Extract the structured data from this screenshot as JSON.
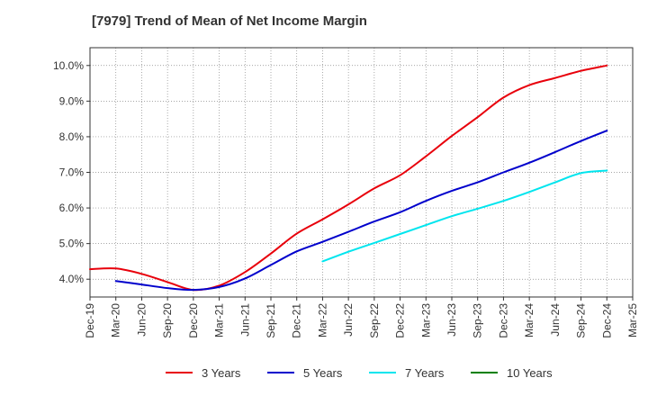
{
  "title": "[7979]  Trend of Mean of Net Income Margin",
  "chart_data": {
    "type": "line",
    "title": "[7979]  Trend of Mean of Net Income Margin",
    "xlabel": "",
    "ylabel": "",
    "x_ticks": [
      "Dec-19",
      "Mar-20",
      "Jun-20",
      "Sep-20",
      "Dec-20",
      "Mar-21",
      "Jun-21",
      "Sep-21",
      "Dec-21",
      "Mar-22",
      "Jun-22",
      "Sep-22",
      "Dec-22",
      "Mar-23",
      "Jun-23",
      "Sep-23",
      "Dec-23",
      "Mar-24",
      "Jun-24",
      "Sep-24",
      "Dec-24",
      "Mar-25"
    ],
    "y_ticks": [
      "4.0%",
      "5.0%",
      "6.0%",
      "7.0%",
      "8.0%",
      "9.0%",
      "10.0%"
    ],
    "ylim": [
      3.5,
      10.5
    ],
    "grid": true,
    "legend_position": "bottom",
    "series": [
      {
        "name": "3 Years",
        "color": "#e8000b",
        "points": [
          [
            0,
            4.28
          ],
          [
            1,
            4.3
          ],
          [
            2,
            4.15
          ],
          [
            3,
            3.92
          ],
          [
            4,
            3.7
          ],
          [
            5,
            3.82
          ],
          [
            6,
            4.2
          ],
          [
            7,
            4.72
          ],
          [
            8,
            5.28
          ],
          [
            9,
            5.68
          ],
          [
            10,
            6.1
          ],
          [
            11,
            6.55
          ],
          [
            12,
            6.92
          ],
          [
            13,
            7.45
          ],
          [
            14,
            8.02
          ],
          [
            15,
            8.55
          ],
          [
            16,
            9.1
          ],
          [
            17,
            9.45
          ],
          [
            18,
            9.65
          ],
          [
            19,
            9.85
          ],
          [
            20,
            10.0
          ]
        ]
      },
      {
        "name": "5 Years",
        "color": "#0000cc",
        "points": [
          [
            1,
            3.95
          ],
          [
            2,
            3.85
          ],
          [
            3,
            3.75
          ],
          [
            4,
            3.7
          ],
          [
            5,
            3.78
          ],
          [
            6,
            4.02
          ],
          [
            7,
            4.4
          ],
          [
            8,
            4.78
          ],
          [
            9,
            5.05
          ],
          [
            10,
            5.33
          ],
          [
            11,
            5.62
          ],
          [
            12,
            5.88
          ],
          [
            13,
            6.2
          ],
          [
            14,
            6.48
          ],
          [
            15,
            6.72
          ],
          [
            16,
            7.0
          ],
          [
            17,
            7.27
          ],
          [
            18,
            7.57
          ],
          [
            19,
            7.88
          ],
          [
            20,
            8.17
          ]
        ]
      },
      {
        "name": "7 Years",
        "color": "#00e5ee",
        "points": [
          [
            9,
            4.5
          ],
          [
            10,
            4.77
          ],
          [
            11,
            5.02
          ],
          [
            12,
            5.27
          ],
          [
            13,
            5.52
          ],
          [
            14,
            5.77
          ],
          [
            15,
            5.98
          ],
          [
            16,
            6.2
          ],
          [
            17,
            6.45
          ],
          [
            18,
            6.72
          ],
          [
            19,
            6.98
          ],
          [
            20,
            7.05
          ]
        ]
      },
      {
        "name": "10 Years",
        "color": "#008000",
        "points": []
      }
    ]
  }
}
